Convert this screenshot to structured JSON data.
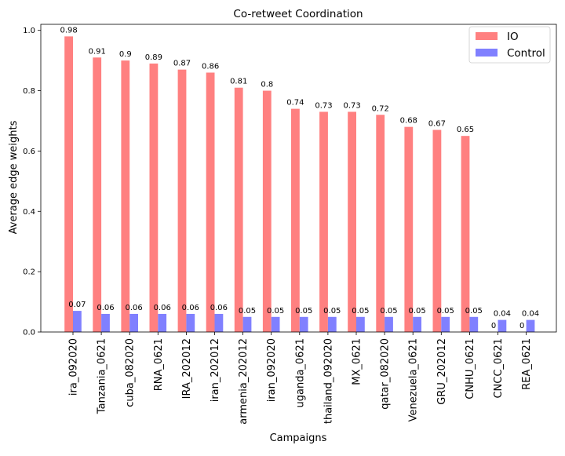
{
  "chart_data": {
    "type": "bar",
    "title": "Co-retweet Coordination",
    "xlabel": "Campaigns",
    "ylabel": "Average edge weights",
    "ylim": [
      0,
      1.02
    ],
    "yticks": [
      "0.0",
      "0.2",
      "0.4",
      "0.6",
      "0.8",
      "1.0"
    ],
    "ytick_values": [
      0,
      0.2,
      0.4,
      0.6,
      0.8,
      1.0
    ],
    "categories": [
      "ira_092020",
      "Tanzania_0621",
      "cuba_082020",
      "RNA_0621",
      "IRA_202012",
      "iran_202012",
      "armenia_202012",
      "iran_092020",
      "uganda_0621",
      "thailand_092020",
      "MX_0621",
      "qatar_082020",
      "Venezuela_0621",
      "GRU_202012",
      "CNHU_0621",
      "CNCC_0621",
      "REA_0621"
    ],
    "series": [
      {
        "name": "IO",
        "color": "#ff8080",
        "values": [
          0.98,
          0.91,
          0.9,
          0.89,
          0.87,
          0.86,
          0.81,
          0.8,
          0.74,
          0.73,
          0.73,
          0.72,
          0.68,
          0.67,
          0.65,
          0,
          0
        ],
        "labels": [
          "0.98",
          "0.91",
          "0.9",
          "0.89",
          "0.87",
          "0.86",
          "0.81",
          "0.8",
          "0.74",
          "0.73",
          "0.73",
          "0.72",
          "0.68",
          "0.67",
          "0.65",
          "0",
          "0"
        ]
      },
      {
        "name": "Control",
        "color": "#8080ff",
        "values": [
          0.07,
          0.06,
          0.06,
          0.06,
          0.06,
          0.06,
          0.05,
          0.05,
          0.05,
          0.05,
          0.05,
          0.05,
          0.05,
          0.05,
          0.05,
          0.04,
          0.04
        ],
        "labels": [
          "0.07",
          "0.06",
          "0.06",
          "0.06",
          "0.06",
          "0.06",
          "0.05",
          "0.05",
          "0.05",
          "0.05",
          "0.05",
          "0.05",
          "0.05",
          "0.05",
          "0.05",
          "0.04",
          "0.04"
        ]
      }
    ],
    "legend_position": "top-right",
    "grid": false
  }
}
